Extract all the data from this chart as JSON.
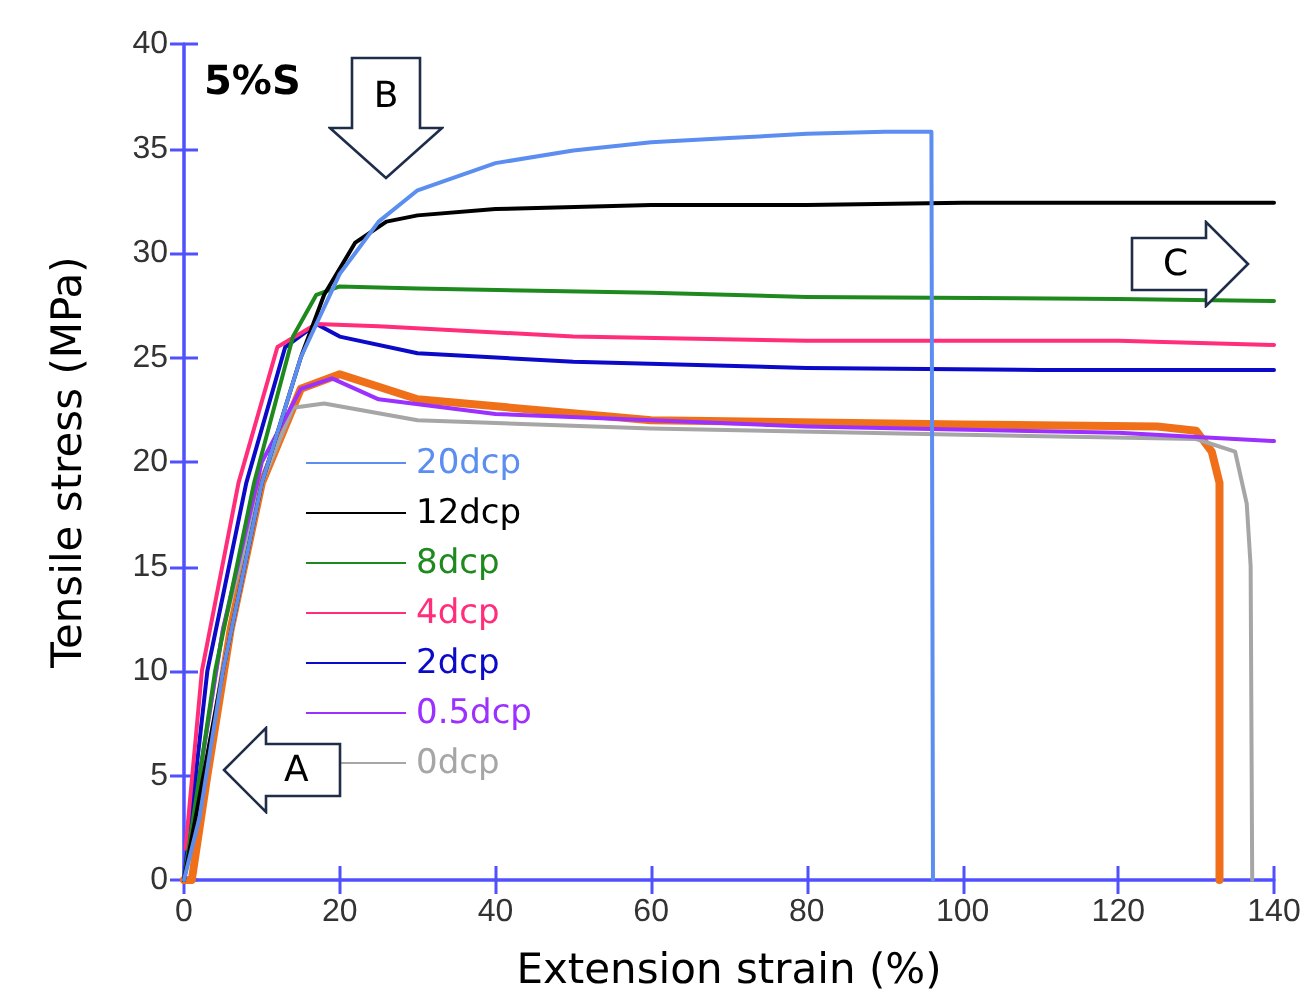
{
  "chart_data": {
    "type": "line",
    "xlabel": "Extension strain (%)",
    "ylabel": "Tensile stress (MPa)",
    "xlim": [
      0,
      140
    ],
    "xticks": [
      0,
      20,
      40,
      60,
      80,
      100,
      120,
      140
    ],
    "ylim": [
      0,
      40
    ],
    "yticks": [
      0,
      5,
      10,
      15,
      20,
      25,
      30,
      35,
      40
    ],
    "grid": false,
    "legend": "left",
    "marker": "none",
    "line_style": "solid",
    "annotations": [
      "5%S",
      "A",
      "B",
      "C"
    ],
    "series": [
      {
        "name": "20dcp",
        "color": "#5b8ef0",
        "x": [
          0,
          2,
          5,
          10,
          15,
          20,
          25,
          30,
          40,
          50,
          60,
          70,
          80,
          90,
          96,
          96.2
        ],
        "values": [
          0,
          3,
          10,
          19,
          25,
          29,
          31.5,
          33,
          34.3,
          34.9,
          35.3,
          35.5,
          35.7,
          35.8,
          35.8,
          0
        ]
      },
      {
        "name": "12dcp",
        "color": "#000000",
        "x": [
          0,
          5,
          10,
          15,
          18,
          22,
          26,
          30,
          40,
          60,
          80,
          100,
          140
        ],
        "values": [
          0,
          10,
          19,
          25,
          28,
          30.5,
          31.5,
          31.8,
          32.1,
          32.3,
          32.3,
          32.4,
          32.4
        ]
      },
      {
        "name": "8dcp",
        "color": "#1e8a1e",
        "x": [
          0,
          4,
          9,
          14,
          17,
          20,
          30,
          60,
          80,
          120,
          140
        ],
        "values": [
          0,
          10,
          19,
          26,
          28,
          28.4,
          28.3,
          28.1,
          27.9,
          27.8,
          27.7
        ]
      },
      {
        "name": "4dcp",
        "color": "#ff2d7a",
        "x": [
          0.2,
          2.3,
          7,
          12,
          17,
          25,
          50,
          80,
          120,
          140
        ],
        "values": [
          1.5,
          10,
          19,
          25.5,
          26.6,
          26.5,
          26,
          25.8,
          25.8,
          25.6
        ]
      },
      {
        "name": "2dcp",
        "color": "#0a0ac8",
        "x": [
          0,
          3,
          8,
          13,
          17,
          20,
          30,
          50,
          80,
          110,
          140
        ],
        "values": [
          0,
          10,
          19,
          25.5,
          26.6,
          26,
          25.2,
          24.8,
          24.5,
          24.4,
          24.4
        ]
      },
      {
        "name": "0.5dcp",
        "color": "#9b30ff",
        "x": [
          0,
          2,
          5,
          10,
          15,
          19,
          25,
          40,
          80,
          120,
          140
        ],
        "values": [
          0,
          5,
          12,
          20,
          23.5,
          24,
          23,
          22.3,
          21.7,
          21.4,
          21
        ]
      },
      {
        "name": "0dcp",
        "color": "#a6a6a6",
        "x": [
          0,
          2,
          5,
          10,
          14,
          18,
          30,
          60,
          100,
          130,
          135,
          136.5,
          137,
          137.2
        ],
        "values": [
          0,
          5,
          12,
          19,
          22.6,
          22.8,
          22,
          21.6,
          21.3,
          21.1,
          20.5,
          18,
          15,
          0
        ]
      },
      {
        "color": "#f0701a",
        "x": [
          0,
          1,
          3,
          6,
          10,
          15,
          20,
          30,
          60,
          100,
          125,
          130,
          132,
          133,
          133
        ],
        "values": [
          0,
          0,
          5,
          12,
          19,
          23.5,
          24.2,
          23,
          22,
          21.8,
          21.7,
          21.5,
          20.5,
          19,
          0
        ]
      }
    ]
  }
}
